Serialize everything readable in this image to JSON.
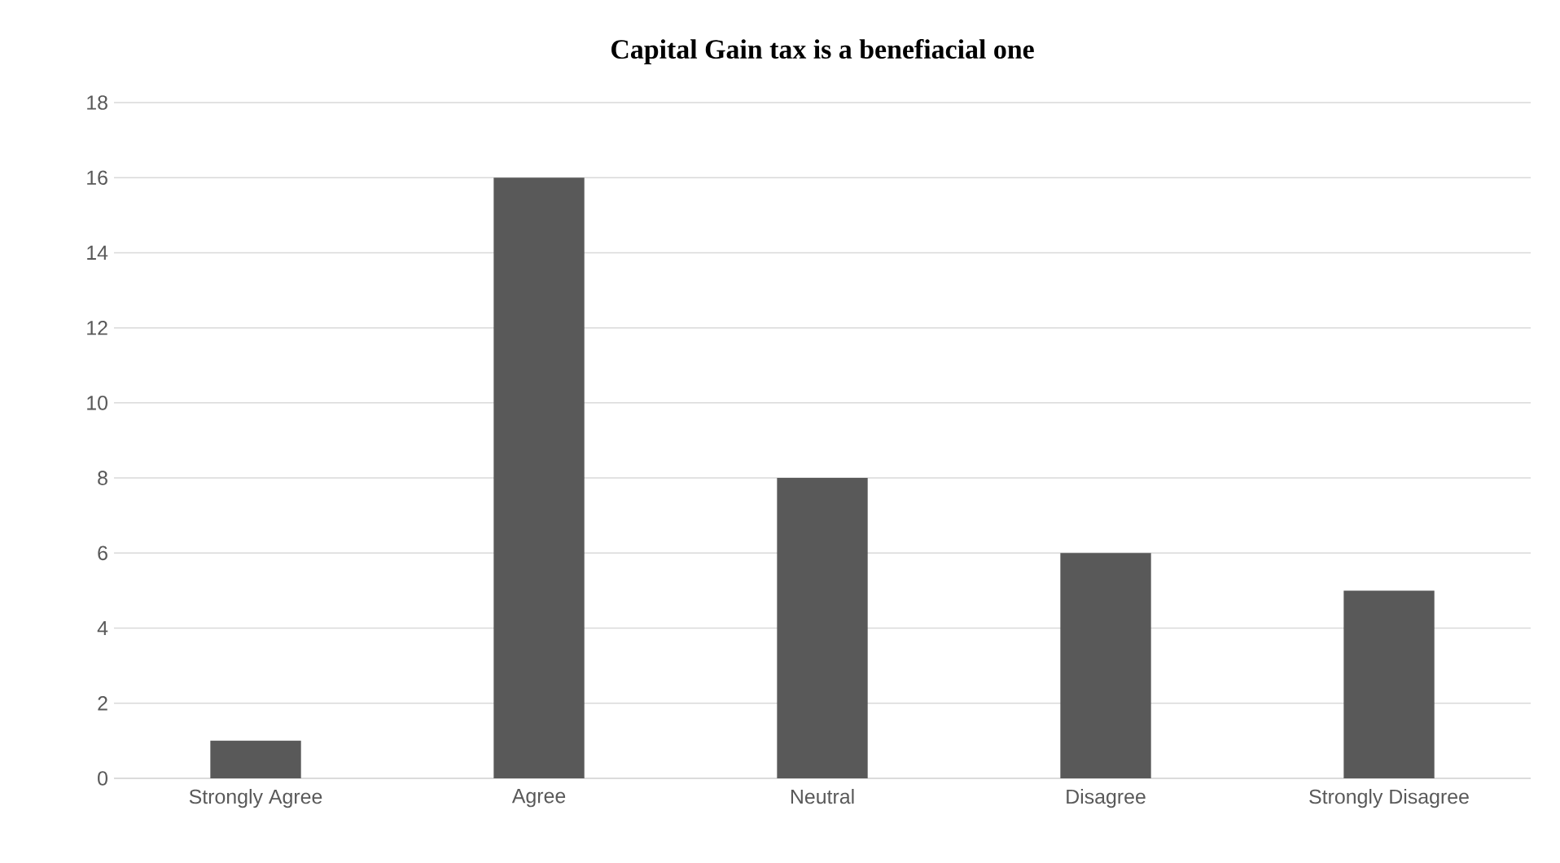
{
  "chart_data": {
    "type": "bar",
    "title": "Capital Gain tax is a benefiacial one",
    "categories": [
      "Strongly Agree",
      "Agree",
      "Neutral",
      "Disagree",
      "Strongly Disagree"
    ],
    "values": [
      1,
      16,
      8,
      6,
      5
    ],
    "color": "#595959",
    "ylim": [
      0,
      18
    ],
    "yticks": [
      0,
      2,
      4,
      6,
      8,
      10,
      12,
      14,
      16,
      18
    ],
    "grid": "y"
  }
}
